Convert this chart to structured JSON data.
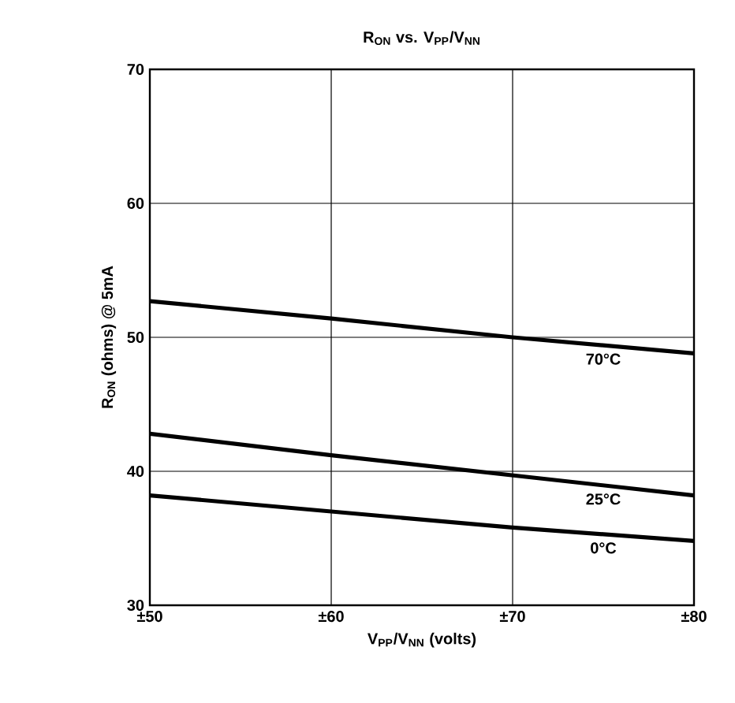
{
  "chart_data": {
    "type": "line",
    "title": "R$_{ON}$ vs. V$_{PP}$/V$_{NN}$",
    "xlabel": "V$_{PP}$/V$_{NN}$ (volts)",
    "ylabel": "R$_{ON}$ (ohms) @ 5mA",
    "x": [
      50,
      60,
      70,
      80
    ],
    "series": [
      {
        "name": "70°C",
        "color": "#000000",
        "values": [
          52.7,
          51.4,
          50.0,
          48.8
        ]
      },
      {
        "name": "25°C",
        "color": "#000000",
        "values": [
          42.8,
          41.2,
          39.7,
          38.2
        ]
      },
      {
        "name": "0°C",
        "color": "#000000",
        "values": [
          38.2,
          37.0,
          35.8,
          34.8
        ]
      }
    ],
    "xlim": [
      50,
      80
    ],
    "xticks": [
      {
        "value": 50,
        "label": "±50"
      },
      {
        "value": 60,
        "label": "±60"
      },
      {
        "value": 70,
        "label": "±70"
      },
      {
        "value": 80,
        "label": "±80"
      }
    ],
    "ylim": [
      30,
      70
    ],
    "yticks": [
      30,
      40,
      50,
      60,
      70
    ],
    "grid": true,
    "legend": false,
    "marker": "none",
    "line_style": "solid"
  }
}
